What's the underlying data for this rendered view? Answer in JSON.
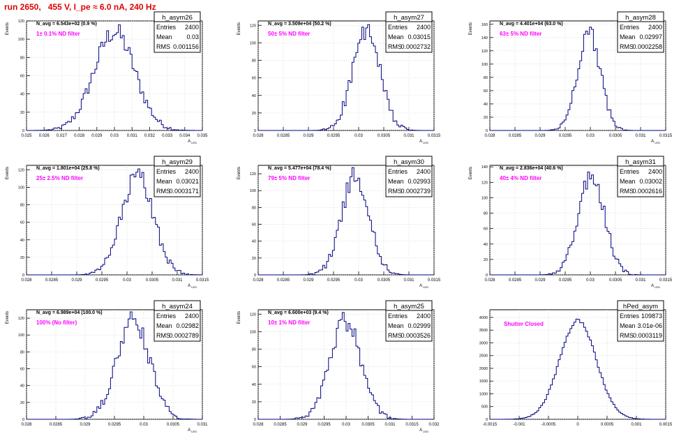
{
  "title": "run 2650,   455 V, I_pe ≈ 6.0 nA, 240 Hz",
  "colors": {
    "title": "#e00000",
    "histogram": "#000080",
    "note": "#ff00ff",
    "grid": "#c8c8c8"
  },
  "chart_data": [
    {
      "type": "histogram",
      "name": "h_asym26",
      "stats": {
        "entries": "2400",
        "mean": "0.03",
        "rms": "0.001156"
      },
      "header": "N_avg = 6.543e+02 (0.9 %)",
      "note": "1± 0.1% ND filter",
      "ylabel": "Events",
      "xlabel": "A_LED",
      "xlim": [
        0.025,
        0.035
      ],
      "xticks": [
        "0.025",
        "0.026",
        "0.027",
        "0.028",
        "0.029",
        "0.03",
        "0.031",
        "0.032",
        "0.033",
        "0.034",
        "0.035"
      ],
      "ylim": [
        0,
        120
      ],
      "yticks": [
        "0",
        "20",
        "40",
        "60",
        "80",
        "100",
        "120"
      ],
      "bins": [
        0.03,
        0.001156
      ]
    },
    {
      "type": "histogram",
      "name": "h_asym27",
      "stats": {
        "entries": "2400",
        "mean": "0.03015",
        "rms": "0.0002732"
      },
      "header": "N_avg = 3.509e+04 (50.2 %)",
      "note": "50± 5% ND filter",
      "ylabel": "Events",
      "xlabel": "A_LED",
      "xlim": [
        0.028,
        0.0315
      ],
      "xticks": [
        "0.028",
        "0.0285",
        "0.029",
        "0.0295",
        "0.03",
        "0.0305",
        "0.031",
        "0.0315"
      ],
      "ylim": [
        0,
        125
      ],
      "yticks": [
        "0",
        "20",
        "40",
        "60",
        "80",
        "100",
        "120"
      ],
      "bins": [
        0.03015,
        0.0002732
      ]
    },
    {
      "type": "histogram",
      "name": "h_asym28",
      "stats": {
        "entries": "2400",
        "mean": "0.02997",
        "rms": "0.0002258"
      },
      "header": "N_avg = 4.401e+04 (63.0 %)",
      "note": "63± 5% ND filter",
      "ylabel": "Events",
      "xlabel": "A_LED",
      "xlim": [
        0.028,
        0.0315
      ],
      "xticks": [
        "0.028",
        "0.0285",
        "0.029",
        "0.0295",
        "0.03",
        "0.0305",
        "0.031",
        "0.0315"
      ],
      "ylim": [
        0,
        165
      ],
      "yticks": [
        "0",
        "20",
        "40",
        "60",
        "80",
        "100",
        "120",
        "140",
        "160"
      ],
      "bins": [
        0.02997,
        0.0002258
      ]
    },
    {
      "type": "histogram",
      "name": "h_asym29",
      "stats": {
        "entries": "2400",
        "mean": "0.03021",
        "rms": "0.0003171"
      },
      "header": "N_avg = 1.801e+04 (25.8 %)",
      "note": "25± 2.5% ND filter",
      "ylabel": "Events",
      "xlabel": "A_LED",
      "xlim": [
        0.028,
        0.0315
      ],
      "xticks": [
        "0.028",
        "0.0285",
        "0.029",
        "0.0295",
        "0.03",
        "0.0305",
        "0.031",
        "0.0315"
      ],
      "ylim": [
        0,
        125
      ],
      "yticks": [
        "0",
        "20",
        "40",
        "60",
        "80",
        "100",
        "120"
      ],
      "bins": [
        0.03021,
        0.0003171
      ]
    },
    {
      "type": "histogram",
      "name": "h_asym30",
      "stats": {
        "entries": "2400",
        "mean": "0.02993",
        "rms": "0.0002739"
      },
      "header": "N_avg = 5.477e+04 (78.4 %)",
      "note": "79± 5% ND filter",
      "ylabel": "Events",
      "xlabel": "A_LED",
      "xlim": [
        0.028,
        0.0315
      ],
      "xticks": [
        "0.028",
        "0.0285",
        "0.029",
        "0.0295",
        "0.03",
        "0.0305",
        "0.031",
        "0.0315"
      ],
      "ylim": [
        0,
        130
      ],
      "yticks": [
        "0",
        "20",
        "40",
        "60",
        "80",
        "100",
        "120"
      ],
      "bins": [
        0.02993,
        0.0002739
      ]
    },
    {
      "type": "histogram",
      "name": "h_asym31",
      "stats": {
        "entries": "2400",
        "mean": "0.03002",
        "rms": "0.0002616"
      },
      "header": "N_avg = 2.836e+04 (40.6 %)",
      "note": "40± 4% ND filter",
      "ylabel": "Events",
      "xlabel": "A_LED",
      "xlim": [
        0.028,
        0.0315
      ],
      "xticks": [
        "0.028",
        "0.0285",
        "0.029",
        "0.0295",
        "0.03",
        "0.0305",
        "0.031",
        "0.0315"
      ],
      "ylim": [
        0,
        142
      ],
      "yticks": [
        "0",
        "20",
        "40",
        "60",
        "80",
        "100",
        "120",
        "140"
      ],
      "bins": [
        0.03002,
        0.0002616
      ]
    },
    {
      "type": "histogram",
      "name": "h_asym24",
      "stats": {
        "entries": "2400",
        "mean": "0.02982",
        "rms": "0.0002789"
      },
      "header": "N_avg = 6.989e+04 (100.0 %)",
      "note": "100% (No filter)",
      "ylabel": "Events",
      "xlabel": "A_LED",
      "xlim": [
        0.028,
        0.031
      ],
      "xticks": [
        "0.028",
        "0.0285",
        "0.029",
        "0.0295",
        "0.03",
        "0.0305",
        "0.031"
      ],
      "ylim": [
        0,
        130
      ],
      "yticks": [
        "0",
        "20",
        "40",
        "60",
        "80",
        "100",
        "120"
      ],
      "bins": [
        0.02982,
        0.0002789
      ]
    },
    {
      "type": "histogram",
      "name": "h_asym25",
      "stats": {
        "entries": "2400",
        "mean": "0.02999",
        "rms": "0.0003526"
      },
      "header": "N_avg = 6.600e+03 (9.4 %)",
      "note": "10± 1% ND filter",
      "ylabel": "Events",
      "xlabel": "A_LED",
      "xlim": [
        0.028,
        0.032
      ],
      "xticks": [
        "0.028",
        "0.0285",
        "0.029",
        "0.0295",
        "0.03",
        "0.0305",
        "0.031",
        "0.0315",
        "0.032"
      ],
      "ylim": [
        0,
        125
      ],
      "yticks": [
        "0",
        "20",
        "40",
        "60",
        "80",
        "100",
        "120"
      ],
      "bins": [
        0.02999,
        0.0003526
      ]
    },
    {
      "type": "histogram",
      "name": "hPed_asym",
      "stats": {
        "entries": "109873",
        "mean": "3.01e-06",
        "rms": "0.0003119"
      },
      "header": "",
      "note": "Shutter Closed",
      "ylabel": "",
      "xlabel": "",
      "xlim": [
        -0.0015,
        0.0015
      ],
      "xticks": [
        "-0.0015",
        "-0.001",
        "-0.0005",
        "0",
        "0.0005",
        "0.001",
        "0.0015"
      ],
      "ylim": [
        0,
        4300
      ],
      "yticks": [
        "0",
        "500",
        "1000",
        "1500",
        "2000",
        "2500",
        "3000",
        "3500",
        "4000"
      ],
      "bins": [
        3e-06,
        0.0003119
      ]
    }
  ]
}
